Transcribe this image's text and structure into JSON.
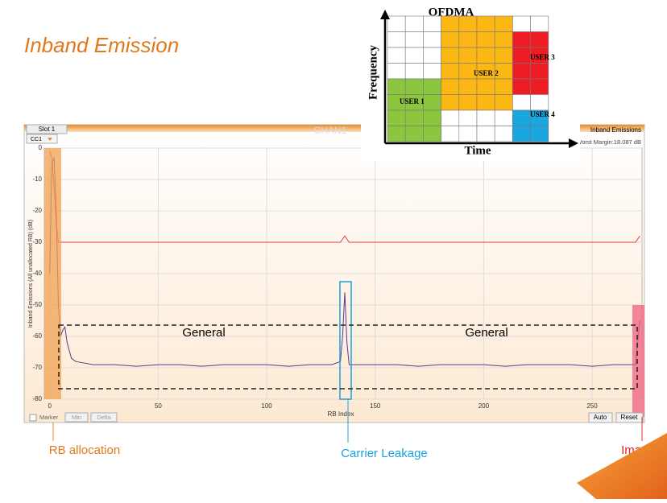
{
  "title": "Inband Emission",
  "ofdma": {
    "title": "OFDMA",
    "y_label": "Frequency",
    "x_label": "Time",
    "users": [
      "USER 1",
      "USER 2",
      "USER 3",
      "USER 4"
    ]
  },
  "ui": {
    "tab": "Slot 1",
    "carrier": "CC1",
    "watermark": "CHAN1",
    "panel_title": "Inband Emissions",
    "worst_margin": "Worst Margin:18.087 dB",
    "marker": "Marker",
    "min": "Min",
    "delta": "Delta",
    "auto": "Auto",
    "reset": "Reset"
  },
  "callouts": [
    "RB allocation",
    "Carrier Leakage",
    "Image"
  ],
  "chart_data": {
    "type": "line",
    "x_label": "RB Index",
    "y_label": "Inband Emissions (All unallocated RB) (dB)",
    "xlim": [
      -2.5,
      273
    ],
    "ylim": [
      -80,
      0
    ],
    "xticks": [
      0,
      50,
      100,
      150,
      200,
      250
    ],
    "yticks": [
      0,
      -10,
      -20,
      -30,
      -40,
      -50,
      -60,
      -70,
      -80
    ],
    "grid": true,
    "annotations": [
      "General",
      "General"
    ],
    "series": [
      {
        "color": "#e0403a",
        "x": [
          0,
          1,
          2,
          3,
          4,
          5,
          134,
          136,
          138,
          270,
          272
        ],
        "values": [
          -1,
          -3,
          -12,
          -24,
          -30,
          -30,
          -30,
          -28,
          -30,
          -30,
          -28
        ]
      },
      {
        "color": "#5b3a8c",
        "x": [
          0,
          1,
          2,
          3,
          4,
          5,
          6,
          7,
          8,
          10,
          12,
          20,
          30,
          40,
          50,
          60,
          70,
          80,
          90,
          100,
          110,
          120,
          130,
          134,
          135,
          136,
          137,
          138,
          140,
          150,
          160,
          170,
          180,
          190,
          200,
          210,
          220,
          230,
          240,
          250,
          260,
          270,
          272
        ],
        "values": [
          -40,
          -5,
          -3,
          -20,
          -50,
          -60,
          -58,
          -57,
          -62,
          -67,
          -68,
          -69,
          -69,
          -69.5,
          -69,
          -69,
          -69.5,
          -69,
          -69,
          -69,
          -69.5,
          -69,
          -69,
          -68,
          -60,
          -46,
          -62,
          -69,
          -69,
          -69,
          -69,
          -69.5,
          -69,
          -69,
          -69,
          -69.5,
          -69,
          -69,
          -69,
          -69.5,
          -69,
          -69,
          -55
        ]
      }
    ]
  }
}
